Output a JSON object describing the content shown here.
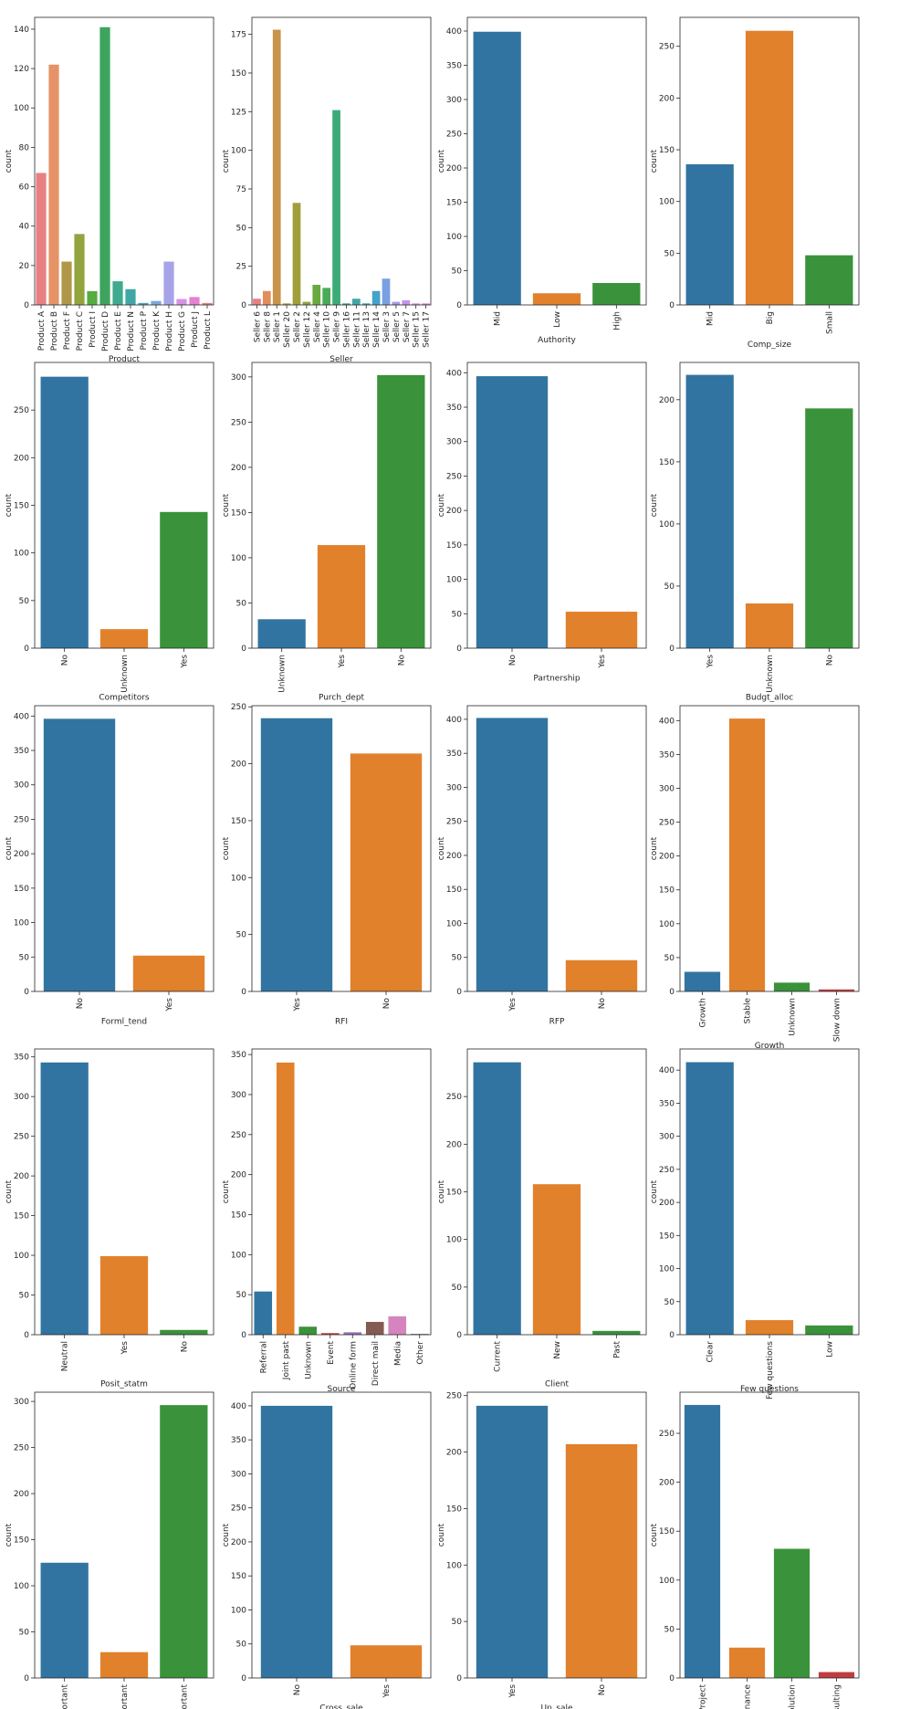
{
  "palette": [
    "#3274a1",
    "#e1812c",
    "#3a923a",
    "#c03d3e",
    "#9372b2",
    "#845b53",
    "#d684bd",
    "#7f7f7f",
    "#a9aa35",
    "#2ebcd0"
  ],
  "product_palette": [
    "#e88083",
    "#e59367",
    "#b09748",
    "#93a43f",
    "#55ac3f",
    "#3da45d",
    "#3eaa8e",
    "#40a7a6",
    "#42a8be",
    "#7aa8e0",
    "#a7a3e8",
    "#d791e6",
    "#e680d0"
  ],
  "seller_palette": [
    "#e88083",
    "#e28e5a",
    "#c8934a",
    "#b39a40",
    "#a09f3b",
    "#8ea43b",
    "#6aa93f",
    "#49ab57",
    "#3dab77",
    "#3da98f",
    "#3fa7a3",
    "#40a6b6",
    "#43a3c9",
    "#7aa0e2",
    "#a09ce9",
    "#c294e8",
    "#dd8be0",
    "#e784c6",
    "#e882a8"
  ],
  "chart_data": [
    {
      "type": "bar",
      "xlabel": "Product",
      "ylabel": "count",
      "ylim": [
        0,
        146
      ],
      "yticks": [
        0,
        20,
        40,
        60,
        80,
        100,
        120,
        140
      ],
      "rotate": true,
      "categories": [
        "Product A",
        "Product B",
        "Product F",
        "Product C",
        "Product I",
        "Product D",
        "Product E",
        "Product N",
        "Product P",
        "Product K",
        "Product H",
        "Product G",
        "Product J",
        "Product L"
      ],
      "values": [
        67,
        122,
        22,
        36,
        7,
        141,
        12,
        8,
        1,
        2,
        22,
        3,
        4,
        1
      ],
      "colors": "product_palette"
    },
    {
      "type": "bar",
      "xlabel": "Seller",
      "ylabel": "count",
      "ylim": [
        0,
        186
      ],
      "yticks": [
        0,
        25,
        50,
        75,
        100,
        125,
        150,
        175
      ],
      "rotate": true,
      "categories": [
        "Seller 6",
        "Seller 8",
        "Seller 1",
        "Seller 20",
        "Seller 2",
        "Seller 12",
        "Seller 4",
        "Seller 10",
        "Seller 9",
        "Seller 16",
        "Seller 11",
        "Seller 13",
        "Seller 14",
        "Seller 3",
        "Seller 5",
        "Seller 7",
        "Seller 15",
        "Seller 17"
      ],
      "values": [
        4,
        9,
        178,
        1,
        66,
        2,
        13,
        11,
        126,
        1,
        4,
        1,
        9,
        17,
        2,
        3,
        1,
        1
      ],
      "colors": "seller_palette"
    },
    {
      "type": "bar",
      "xlabel": "Authority",
      "ylabel": "count",
      "ylim": [
        0,
        420
      ],
      "yticks": [
        0,
        50,
        100,
        150,
        200,
        250,
        300,
        350,
        400
      ],
      "rotate": true,
      "categories": [
        "Mid",
        "Low",
        "High"
      ],
      "values": [
        399,
        17,
        32
      ]
    },
    {
      "type": "bar",
      "xlabel": "Comp_size",
      "ylabel": "count",
      "ylim": [
        0,
        278
      ],
      "yticks": [
        0,
        50,
        100,
        150,
        200,
        250
      ],
      "rotate": true,
      "categories": [
        "Mid",
        "Big",
        "Small"
      ],
      "values": [
        136,
        265,
        48
      ]
    },
    {
      "type": "bar",
      "xlabel": "Competitors",
      "ylabel": "count",
      "ylim": [
        0,
        300
      ],
      "yticks": [
        0,
        50,
        100,
        150,
        200,
        250
      ],
      "rotate": true,
      "categories": [
        "No",
        "Unknown",
        "Yes"
      ],
      "values": [
        285,
        20,
        143
      ]
    },
    {
      "type": "bar",
      "xlabel": "Purch_dept",
      "ylabel": "count",
      "ylim": [
        0,
        316
      ],
      "yticks": [
        0,
        50,
        100,
        150,
        200,
        250,
        300
      ],
      "rotate": true,
      "categories": [
        "Unknown",
        "Yes",
        "No"
      ],
      "values": [
        32,
        114,
        302
      ]
    },
    {
      "type": "bar",
      "xlabel": "Partnership",
      "ylabel": "count",
      "ylim": [
        0,
        415
      ],
      "yticks": [
        0,
        50,
        100,
        150,
        200,
        250,
        300,
        350,
        400
      ],
      "rotate": true,
      "categories": [
        "No",
        "Yes"
      ],
      "values": [
        395,
        53
      ]
    },
    {
      "type": "bar",
      "xlabel": "Budgt_alloc",
      "ylabel": "count",
      "ylim": [
        0,
        230
      ],
      "yticks": [
        0,
        50,
        100,
        150,
        200
      ],
      "rotate": true,
      "categories": [
        "Yes",
        "Unknown",
        "No"
      ],
      "values": [
        220,
        36,
        193
      ]
    },
    {
      "type": "bar",
      "xlabel": "Forml_tend",
      "ylabel": "count",
      "ylim": [
        0,
        415
      ],
      "yticks": [
        0,
        50,
        100,
        150,
        200,
        250,
        300,
        350,
        400
      ],
      "rotate": true,
      "categories": [
        "No",
        "Yes"
      ],
      "values": [
        396,
        52
      ]
    },
    {
      "type": "bar",
      "xlabel": "RFI",
      "ylabel": "count",
      "ylim": [
        0,
        251
      ],
      "yticks": [
        0,
        50,
        100,
        150,
        200,
        250
      ],
      "rotate": true,
      "categories": [
        "Yes",
        "No"
      ],
      "values": [
        240,
        209
      ]
    },
    {
      "type": "bar",
      "xlabel": "RFP",
      "ylabel": "count",
      "ylim": [
        0,
        420
      ],
      "yticks": [
        0,
        50,
        100,
        150,
        200,
        250,
        300,
        350,
        400
      ],
      "rotate": true,
      "categories": [
        "Yes",
        "No"
      ],
      "values": [
        402,
        46
      ]
    },
    {
      "type": "bar",
      "xlabel": "Growth",
      "ylabel": "count",
      "ylim": [
        0,
        422
      ],
      "yticks": [
        0,
        50,
        100,
        150,
        200,
        250,
        300,
        350,
        400
      ],
      "rotate": true,
      "categories": [
        "Growth",
        "Stable",
        "Unknown",
        "Slow down"
      ],
      "values": [
        29,
        403,
        13,
        3
      ]
    },
    {
      "type": "bar",
      "xlabel": "Posit_statm",
      "ylabel": "count",
      "ylim": [
        0,
        360
      ],
      "yticks": [
        0,
        50,
        100,
        150,
        200,
        250,
        300,
        350
      ],
      "rotate": true,
      "categories": [
        "Neutral",
        "Yes",
        "No"
      ],
      "values": [
        343,
        99,
        6
      ]
    },
    {
      "type": "bar",
      "xlabel": "Source",
      "ylabel": "count",
      "ylim": [
        0,
        357
      ],
      "yticks": [
        0,
        50,
        100,
        150,
        200,
        250,
        300,
        350
      ],
      "rotate": true,
      "categories": [
        "Referral",
        "Joint past",
        "Unknown",
        "Event",
        "Online form",
        "Direct mail",
        "Media",
        "Other"
      ],
      "values": [
        54,
        340,
        10,
        2,
        3,
        16,
        23,
        1
      ]
    },
    {
      "type": "bar",
      "xlabel": "Client",
      "ylabel": "count",
      "ylim": [
        0,
        300
      ],
      "yticks": [
        0,
        50,
        100,
        150,
        200,
        250
      ],
      "rotate": true,
      "categories": [
        "Current",
        "New",
        "Past"
      ],
      "values": [
        286,
        158,
        4
      ]
    },
    {
      "type": "bar",
      "xlabel": "Few questions",
      "ylabel": "count",
      "ylim": [
        0,
        432
      ],
      "yticks": [
        0,
        50,
        100,
        150,
        200,
        250,
        300,
        350,
        400
      ],
      "rotate": true,
      "categories": [
        "Clear",
        "Few questions",
        "Low"
      ],
      "values": [
        412,
        22,
        14
      ]
    },
    {
      "type": "bar",
      "xlabel": "",
      "ylabel": "count",
      "ylim": [
        0,
        310
      ],
      "yticks": [
        0,
        50,
        100,
        150,
        200,
        250,
        300
      ],
      "rotate": true,
      "categories": [
        "Very important",
        "Unimportant",
        "Average important"
      ],
      "values": [
        125,
        28,
        296
      ]
    },
    {
      "type": "bar",
      "xlabel": "Cross_sale",
      "ylabel": "count",
      "ylim": [
        0,
        420
      ],
      "yticks": [
        0,
        50,
        100,
        150,
        200,
        250,
        300,
        350,
        400
      ],
      "rotate": true,
      "categories": [
        "No",
        "Yes"
      ],
      "values": [
        400,
        48
      ]
    },
    {
      "type": "bar",
      "xlabel": "Up_sale",
      "ylabel": "count",
      "ylim": [
        0,
        253
      ],
      "yticks": [
        0,
        50,
        100,
        150,
        200,
        250
      ],
      "rotate": true,
      "categories": [
        "Yes",
        "No"
      ],
      "values": [
        241,
        207
      ]
    },
    {
      "type": "bar",
      "xlabel": "",
      "ylabel": "count",
      "ylim": [
        0,
        292
      ],
      "yticks": [
        0,
        50,
        100,
        150,
        200,
        250
      ],
      "rotate": true,
      "categories": [
        "Project",
        "Maintenance",
        "Solution",
        "Consulting"
      ],
      "values": [
        279,
        31,
        132,
        6
      ]
    }
  ]
}
